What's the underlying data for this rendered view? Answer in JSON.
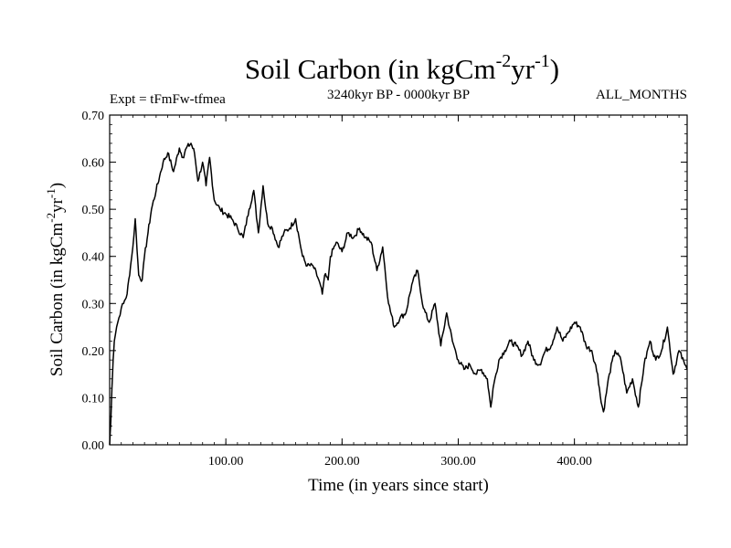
{
  "chart_data": {
    "type": "line",
    "title": {
      "base": "Soil Carbon (in kgCm",
      "exp1": "-2",
      "mid": "yr",
      "exp2": "-1",
      "end": ")"
    },
    "experiment_label": "Expt = tFmFw-tfmea",
    "period_label": "3240kyr BP - 0000kyr BP",
    "months_label": "ALL_MONTHS",
    "xlabel": "Time (in years since start)",
    "ylabel": {
      "base": "Soil Carbon (in kgCm",
      "exp1": "-2",
      "mid": "yr",
      "exp2": "-1",
      "end": ")"
    },
    "xlim": [
      0,
      497
    ],
    "ylim": [
      0,
      0.7
    ],
    "x_ticks": [
      {
        "value": 100,
        "label": "100.00"
      },
      {
        "value": 200,
        "label": "200.00"
      },
      {
        "value": 300,
        "label": "300.00"
      },
      {
        "value": 400,
        "label": "400.00"
      }
    ],
    "y_ticks": [
      {
        "value": 0.0,
        "label": "0.00"
      },
      {
        "value": 0.1,
        "label": "0.10"
      },
      {
        "value": 0.2,
        "label": "0.20"
      },
      {
        "value": 0.3,
        "label": "0.30"
      },
      {
        "value": 0.4,
        "label": "0.40"
      },
      {
        "value": 0.5,
        "label": "0.50"
      },
      {
        "value": 0.6,
        "label": "0.60"
      },
      {
        "value": 0.7,
        "label": "0.70"
      }
    ],
    "series": [
      {
        "name": "Soil Carbon",
        "x": [
          0,
          1,
          2,
          3,
          4,
          6,
          8,
          10,
          12,
          15,
          18,
          20,
          22,
          25,
          28,
          30,
          33,
          36,
          40,
          43,
          46,
          50,
          55,
          60,
          63,
          66,
          70,
          73,
          76,
          80,
          83,
          86,
          90,
          95,
          100,
          105,
          110,
          115,
          120,
          124,
          128,
          132,
          136,
          140,
          145,
          150,
          155,
          160,
          163,
          166,
          170,
          175,
          180,
          183,
          185,
          188,
          190,
          195,
          200,
          205,
          210,
          215,
          220,
          225,
          230,
          235,
          240,
          245,
          250,
          255,
          260,
          265,
          270,
          275,
          280,
          285,
          290,
          295,
          300,
          305,
          310,
          315,
          320,
          325,
          328,
          330,
          335,
          340,
          345,
          350,
          355,
          360,
          365,
          370,
          375,
          380,
          385,
          390,
          395,
          400,
          405,
          410,
          415,
          420,
          423,
          425,
          430,
          435,
          440,
          445,
          450,
          455,
          460,
          465,
          470,
          475,
          480,
          485,
          490,
          495,
          497
        ],
        "values": [
          0.0,
          0.05,
          0.12,
          0.18,
          0.22,
          0.25,
          0.27,
          0.29,
          0.3,
          0.32,
          0.38,
          0.42,
          0.48,
          0.36,
          0.35,
          0.4,
          0.45,
          0.5,
          0.54,
          0.57,
          0.6,
          0.62,
          0.58,
          0.63,
          0.61,
          0.63,
          0.64,
          0.62,
          0.56,
          0.6,
          0.55,
          0.61,
          0.52,
          0.5,
          0.49,
          0.48,
          0.46,
          0.44,
          0.5,
          0.54,
          0.45,
          0.55,
          0.47,
          0.46,
          0.42,
          0.45,
          0.46,
          0.48,
          0.44,
          0.4,
          0.38,
          0.38,
          0.35,
          0.32,
          0.36,
          0.35,
          0.4,
          0.43,
          0.41,
          0.45,
          0.44,
          0.46,
          0.44,
          0.43,
          0.37,
          0.42,
          0.3,
          0.25,
          0.27,
          0.28,
          0.34,
          0.37,
          0.29,
          0.26,
          0.3,
          0.21,
          0.28,
          0.22,
          0.18,
          0.16,
          0.17,
          0.15,
          0.16,
          0.14,
          0.08,
          0.12,
          0.18,
          0.2,
          0.22,
          0.21,
          0.19,
          0.22,
          0.18,
          0.17,
          0.2,
          0.21,
          0.25,
          0.22,
          0.24,
          0.26,
          0.25,
          0.21,
          0.2,
          0.15,
          0.09,
          0.07,
          0.15,
          0.2,
          0.18,
          0.11,
          0.14,
          0.08,
          0.17,
          0.22,
          0.18,
          0.2,
          0.25,
          0.15,
          0.2,
          0.17,
          0.16
        ]
      }
    ]
  },
  "colors": {
    "line": "#000000",
    "axis": "#000000",
    "background": "#ffffff"
  }
}
